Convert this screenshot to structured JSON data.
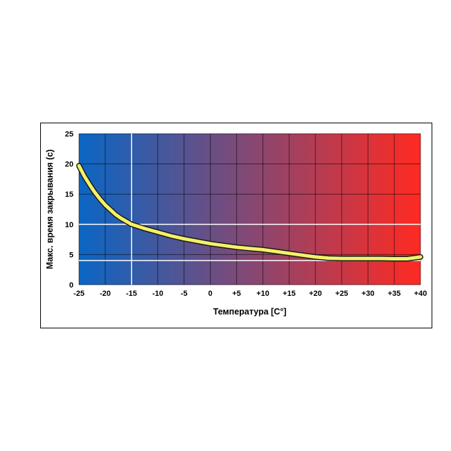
{
  "chart_data": {
    "type": "line",
    "title": "",
    "xlabel": "Температура [C°]",
    "ylabel": "Макс. время закрывания (с)",
    "x_ticks": [
      "-25",
      "-20",
      "-15",
      "-10",
      "-5",
      "0",
      "+5",
      "+10",
      "+15",
      "+20",
      "+25",
      "+30",
      "+35",
      "+40"
    ],
    "y_ticks": [
      "0",
      "5",
      "10",
      "15",
      "20",
      "25"
    ],
    "xlim": [
      -25,
      40
    ],
    "ylim": [
      0,
      25
    ],
    "background_gradient": [
      "#0a66c4",
      "#ff2a22"
    ],
    "series": [
      {
        "color": "#f4f06a",
        "x": [
          -25,
          -24,
          -23,
          -22,
          -21,
          -20,
          -19,
          -18,
          -17,
          -16,
          -15,
          -12.5,
          -10,
          -7.5,
          -5,
          -2.5,
          0,
          2.5,
          5,
          7.5,
          10,
          12.5,
          15,
          17.5,
          20,
          22.5,
          25,
          27.5,
          30,
          32.5,
          35,
          37.5,
          40
        ],
        "y": [
          19.7,
          18.0,
          16.6,
          15.3,
          14.2,
          13.2,
          12.4,
          11.6,
          11.0,
          10.5,
          10.0,
          9.3,
          8.7,
          8.1,
          7.6,
          7.2,
          6.8,
          6.5,
          6.2,
          6.0,
          5.8,
          5.5,
          5.2,
          4.9,
          4.6,
          4.4,
          4.35,
          4.35,
          4.35,
          4.35,
          4.3,
          4.3,
          4.6
        ]
      }
    ],
    "highlight_lines": {
      "x": [
        -15
      ],
      "y": [
        4,
        10
      ]
    },
    "grid": true
  }
}
